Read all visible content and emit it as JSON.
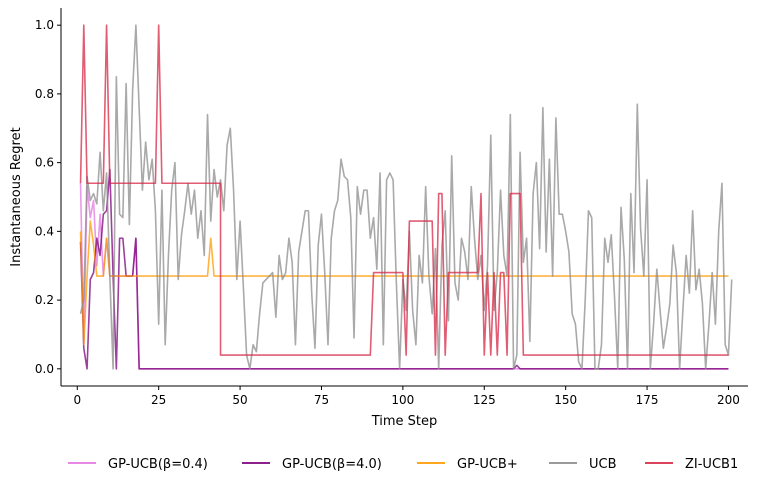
{
  "chart_data": {
    "type": "line",
    "xlabel": "Time Step",
    "ylabel": "Instantaneous Regret",
    "xlim": [
      -5,
      206
    ],
    "ylim": [
      -0.05,
      1.05
    ],
    "xticks": [
      0,
      25,
      50,
      75,
      100,
      125,
      150,
      175,
      200
    ],
    "yticks": [
      0.0,
      0.2,
      0.4,
      0.6,
      0.8,
      1.0
    ],
    "ytick_labels": [
      "0.0",
      "0.2",
      "0.4",
      "0.6",
      "0.8",
      "1.0"
    ],
    "grid": false,
    "legend_position": "bottom",
    "series": [
      {
        "name": "GP-UCB(β=0.4)",
        "color": "#e377e0",
        "points": [
          [
            1,
            0.54
          ],
          [
            2,
            0.07
          ],
          [
            3,
            0.53
          ],
          [
            4,
            0.44
          ],
          [
            5,
            0.49
          ],
          [
            6,
            0.3
          ],
          [
            7,
            0.45
          ],
          [
            8,
            0.27
          ],
          [
            9,
            0.38
          ],
          [
            10,
            0.27
          ],
          [
            13,
            0.27
          ],
          [
            14,
            0.27
          ],
          [
            15,
            0.27
          ],
          [
            16,
            0.27
          ],
          [
            17,
            0.27
          ],
          [
            18,
            0.38
          ],
          [
            19,
            0.0
          ],
          [
            200,
            0.0
          ]
        ]
      },
      {
        "name": "GP-UCB(β=4.0)",
        "color": "#7b007b",
        "points": [
          [
            1,
            0.37
          ],
          [
            2,
            0.06
          ],
          [
            3,
            0.0
          ],
          [
            4,
            0.26
          ],
          [
            5,
            0.28
          ],
          [
            6,
            0.38
          ],
          [
            7,
            0.33
          ],
          [
            8,
            0.45
          ],
          [
            9,
            0.46
          ],
          [
            10,
            0.58
          ],
          [
            11,
            0.27
          ],
          [
            12,
            0.0
          ],
          [
            13,
            0.38
          ],
          [
            14,
            0.38
          ],
          [
            15,
            0.27
          ],
          [
            16,
            0.27
          ],
          [
            17,
            0.27
          ],
          [
            18,
            0.38
          ],
          [
            19,
            0.0
          ],
          [
            134,
            0.0
          ],
          [
            135,
            0.01
          ],
          [
            136,
            0.0
          ],
          [
            200,
            0.0
          ]
        ]
      },
      {
        "name": "GP-UCB+",
        "color": "#ff9a00",
        "points": [
          [
            1,
            0.4
          ],
          [
            2,
            0.07
          ],
          [
            3,
            0.27
          ],
          [
            4,
            0.43
          ],
          [
            5,
            0.36
          ],
          [
            6,
            0.27
          ],
          [
            7,
            0.27
          ],
          [
            8,
            0.27
          ],
          [
            9,
            0.38
          ],
          [
            10,
            0.27
          ],
          [
            11,
            0.27
          ],
          [
            40,
            0.27
          ],
          [
            41,
            0.38
          ],
          [
            42,
            0.27
          ],
          [
            200,
            0.27
          ]
        ]
      },
      {
        "name": "UCB",
        "color": "#8c8c8c",
        "points": [
          [
            1,
            0.16
          ],
          [
            2,
            0.2
          ],
          [
            3,
            0.56
          ],
          [
            4,
            0.49
          ],
          [
            5,
            0.51
          ],
          [
            6,
            0.48
          ],
          [
            7,
            0.63
          ],
          [
            8,
            0.46
          ],
          [
            9,
            0.57
          ],
          [
            10,
            0.27
          ],
          [
            11,
            0.0
          ],
          [
            12,
            0.85
          ],
          [
            13,
            0.45
          ],
          [
            14,
            0.44
          ],
          [
            15,
            0.83
          ],
          [
            16,
            0.42
          ],
          [
            17,
            0.81
          ],
          [
            18,
            1.0
          ],
          [
            19,
            0.76
          ],
          [
            20,
            0.52
          ],
          [
            21,
            0.66
          ],
          [
            22,
            0.55
          ],
          [
            23,
            0.61
          ],
          [
            24,
            0.46
          ],
          [
            25,
            0.13
          ],
          [
            26,
            0.52
          ],
          [
            27,
            0.07
          ],
          [
            28,
            0.33
          ],
          [
            29,
            0.52
          ],
          [
            30,
            0.6
          ],
          [
            31,
            0.26
          ],
          [
            32,
            0.39
          ],
          [
            33,
            0.46
          ],
          [
            34,
            0.54
          ],
          [
            35,
            0.45
          ],
          [
            36,
            0.52
          ],
          [
            37,
            0.38
          ],
          [
            38,
            0.46
          ],
          [
            39,
            0.33
          ],
          [
            40,
            0.74
          ],
          [
            41,
            0.43
          ],
          [
            42,
            0.58
          ],
          [
            43,
            0.5
          ],
          [
            44,
            0.55
          ],
          [
            45,
            0.46
          ],
          [
            46,
            0.65
          ],
          [
            47,
            0.7
          ],
          [
            48,
            0.52
          ],
          [
            49,
            0.26
          ],
          [
            50,
            0.43
          ],
          [
            51,
            0.24
          ],
          [
            52,
            0.04
          ],
          [
            53,
            0.0
          ],
          [
            54,
            0.07
          ],
          [
            55,
            0.05
          ],
          [
            56,
            0.16
          ],
          [
            57,
            0.25
          ],
          [
            58,
            0.26
          ],
          [
            59,
            0.27
          ],
          [
            60,
            0.28
          ],
          [
            61,
            0.15
          ],
          [
            62,
            0.33
          ],
          [
            63,
            0.26
          ],
          [
            64,
            0.28
          ],
          [
            65,
            0.38
          ],
          [
            66,
            0.31
          ],
          [
            67,
            0.07
          ],
          [
            68,
            0.34
          ],
          [
            69,
            0.4
          ],
          [
            70,
            0.46
          ],
          [
            71,
            0.46
          ],
          [
            72,
            0.22
          ],
          [
            73,
            0.06
          ],
          [
            74,
            0.36
          ],
          [
            75,
            0.45
          ],
          [
            76,
            0.28
          ],
          [
            77,
            0.07
          ],
          [
            78,
            0.38
          ],
          [
            79,
            0.46
          ],
          [
            80,
            0.49
          ],
          [
            81,
            0.61
          ],
          [
            82,
            0.56
          ],
          [
            83,
            0.55
          ],
          [
            84,
            0.44
          ],
          [
            85,
            0.09
          ],
          [
            86,
            0.53
          ],
          [
            87,
            0.45
          ],
          [
            88,
            0.52
          ],
          [
            89,
            0.52
          ],
          [
            90,
            0.38
          ],
          [
            91,
            0.44
          ],
          [
            92,
            0.29
          ],
          [
            93,
            0.57
          ],
          [
            94,
            0.07
          ],
          [
            95,
            0.55
          ],
          [
            96,
            0.57
          ],
          [
            97,
            0.55
          ],
          [
            98,
            0.25
          ],
          [
            99,
            0.0
          ],
          [
            100,
            0.26
          ],
          [
            101,
            0.17
          ],
          [
            102,
            0.4
          ],
          [
            103,
            0.17
          ],
          [
            104,
            0.07
          ],
          [
            105,
            0.33
          ],
          [
            106,
            0.25
          ],
          [
            107,
            0.53
          ],
          [
            108,
            0.27
          ],
          [
            109,
            0.16
          ],
          [
            110,
            0.35
          ],
          [
            111,
            0.0
          ],
          [
            112,
            0.36
          ],
          [
            113,
            0.46
          ],
          [
            114,
            0.14
          ],
          [
            115,
            0.62
          ],
          [
            116,
            0.25
          ],
          [
            117,
            0.2
          ],
          [
            118,
            0.38
          ],
          [
            119,
            0.34
          ],
          [
            120,
            0.26
          ],
          [
            121,
            0.53
          ],
          [
            122,
            0.38
          ],
          [
            123,
            0.26
          ],
          [
            124,
            0.33
          ],
          [
            125,
            0.17
          ],
          [
            126,
            0.3
          ],
          [
            127,
            0.68
          ],
          [
            128,
            0.17
          ],
          [
            129,
            0.28
          ],
          [
            130,
            0.52
          ],
          [
            131,
            0.33
          ],
          [
            132,
            0.27
          ],
          [
            133,
            0.74
          ],
          [
            134,
            0.0
          ],
          [
            135,
            0.04
          ],
          [
            136,
            0.63
          ],
          [
            137,
            0.31
          ],
          [
            138,
            0.38
          ],
          [
            139,
            0.08
          ],
          [
            140,
            0.51
          ],
          [
            141,
            0.6
          ],
          [
            142,
            0.35
          ],
          [
            143,
            0.76
          ],
          [
            144,
            0.34
          ],
          [
            145,
            0.61
          ],
          [
            146,
            0.27
          ],
          [
            147,
            0.73
          ],
          [
            148,
            0.45
          ],
          [
            149,
            0.45
          ],
          [
            150,
            0.4
          ],
          [
            151,
            0.34
          ],
          [
            152,
            0.16
          ],
          [
            153,
            0.13
          ],
          [
            154,
            0.02
          ],
          [
            155,
            0.0
          ],
          [
            156,
            0.2
          ],
          [
            157,
            0.46
          ],
          [
            158,
            0.44
          ],
          [
            159,
            0.0
          ],
          [
            160,
            0.0
          ],
          [
            161,
            0.07
          ],
          [
            162,
            0.38
          ],
          [
            163,
            0.31
          ],
          [
            164,
            0.39
          ],
          [
            165,
            0.21
          ],
          [
            166,
            0.0
          ],
          [
            167,
            0.47
          ],
          [
            168,
            0.32
          ],
          [
            169,
            0.0
          ],
          [
            170,
            0.51
          ],
          [
            171,
            0.28
          ],
          [
            172,
            0.77
          ],
          [
            173,
            0.41
          ],
          [
            174,
            0.27
          ],
          [
            175,
            0.55
          ],
          [
            176,
            0.0
          ],
          [
            177,
            0.13
          ],
          [
            178,
            0.29
          ],
          [
            179,
            0.17
          ],
          [
            180,
            0.06
          ],
          [
            181,
            0.12
          ],
          [
            182,
            0.19
          ],
          [
            183,
            0.36
          ],
          [
            184,
            0.28
          ],
          [
            185,
            0.0
          ],
          [
            186,
            0.17
          ],
          [
            187,
            0.33
          ],
          [
            188,
            0.22
          ],
          [
            189,
            0.46
          ],
          [
            190,
            0.23
          ],
          [
            191,
            0.29
          ],
          [
            192,
            0.19
          ],
          [
            193,
            0.0
          ],
          [
            194,
            0.13
          ],
          [
            195,
            0.28
          ],
          [
            196,
            0.13
          ],
          [
            197,
            0.4
          ],
          [
            198,
            0.54
          ],
          [
            199,
            0.07
          ],
          [
            200,
            0.04
          ],
          [
            201,
            0.26
          ]
        ]
      },
      {
        "name": "ZI-UCB1",
        "color": "#d62745",
        "points": [
          [
            1,
            0.54
          ],
          [
            2,
            1.0
          ],
          [
            3,
            0.54
          ],
          [
            4,
            0.54
          ],
          [
            5,
            0.54
          ],
          [
            6,
            0.54
          ],
          [
            7,
            0.54
          ],
          [
            8,
            0.54
          ],
          [
            9,
            1.0
          ],
          [
            10,
            0.54
          ],
          [
            11,
            0.54
          ],
          [
            24,
            0.54
          ],
          [
            25,
            1.0
          ],
          [
            26,
            0.54
          ],
          [
            44,
            0.54
          ],
          [
            44,
            0.04
          ],
          [
            90,
            0.04
          ],
          [
            91,
            0.28
          ],
          [
            100,
            0.28
          ],
          [
            101,
            0.04
          ],
          [
            102,
            0.43
          ],
          [
            109,
            0.43
          ],
          [
            110,
            0.04
          ],
          [
            111,
            0.51
          ],
          [
            112,
            0.51
          ],
          [
            113,
            0.04
          ],
          [
            114,
            0.28
          ],
          [
            123,
            0.28
          ],
          [
            124,
            0.51
          ],
          [
            125,
            0.04
          ],
          [
            126,
            0.28
          ],
          [
            127,
            0.04
          ],
          [
            128,
            0.28
          ],
          [
            129,
            0.04
          ],
          [
            130,
            0.28
          ],
          [
            131,
            0.28
          ],
          [
            132,
            0.04
          ],
          [
            133,
            0.51
          ],
          [
            134,
            0.51
          ],
          [
            136,
            0.51
          ],
          [
            137,
            0.04
          ],
          [
            200,
            0.04
          ]
        ]
      }
    ]
  }
}
